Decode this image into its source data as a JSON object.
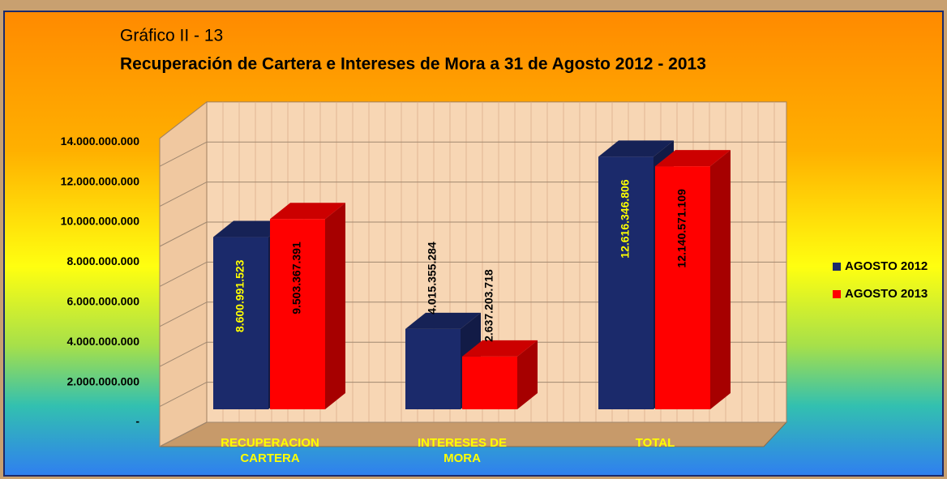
{
  "chart_data": {
    "type": "bar3d",
    "subtitle": "Gráfico II - 13",
    "title": "Recuperación de Cartera e Intereses de Mora a 31 de Agosto 2012 - 2013",
    "categories": [
      "RECUPERACION CARTERA",
      "INTERESES DE MORA",
      "TOTAL"
    ],
    "series": [
      {
        "name": "AGOSTO 2012",
        "color": "#1b2a6b",
        "label_color": "#ffff00",
        "values": [
          8600991523,
          4015355284,
          12616346806
        ],
        "value_labels": [
          "8.600.991.523",
          "4.015.355.284",
          "12.616.346.806"
        ]
      },
      {
        "name": "AGOSTO 2013",
        "color": "#ff0000",
        "label_color": "#000000",
        "values": [
          9503367391,
          2637203718,
          12140571109
        ],
        "value_labels": [
          "9.503.367.391",
          "2.637.203.718",
          "12.140.571.109"
        ]
      }
    ],
    "ylim": [
      0,
      16000000000
    ],
    "yticks": [
      {
        "value": 0,
        "label": "-"
      },
      {
        "value": 2000000000,
        "label": "2.000.000.000"
      },
      {
        "value": 4000000000,
        "label": "4.000.000.000"
      },
      {
        "value": 6000000000,
        "label": "6.000.000.000"
      },
      {
        "value": 8000000000,
        "label": "8.000.000.000"
      },
      {
        "value": 10000000000,
        "label": "10.000.000.000"
      },
      {
        "value": 12000000000,
        "label": "12.000.000.000"
      },
      {
        "value": 14000000000,
        "label": "14.000.000.000"
      }
    ],
    "grid": true,
    "legend": "right"
  }
}
